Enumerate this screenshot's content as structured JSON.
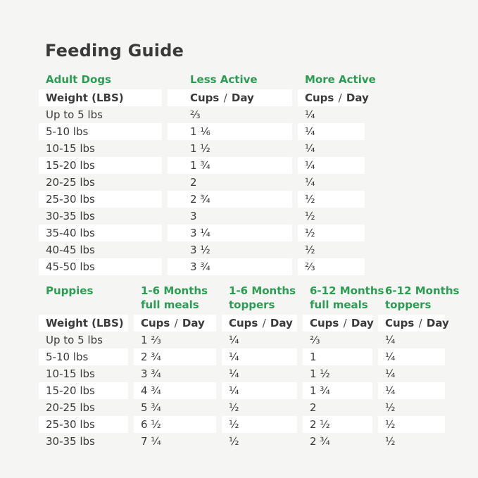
{
  "page": {
    "title": "Feeding Guide",
    "background_color": "#f5f5f3",
    "accent_green": "#2a9d52",
    "text_color": "#3a3a3a",
    "row_highlight_color": "#ffffff"
  },
  "adult_table": {
    "section_label": "Adult Dogs",
    "column_headers": [
      [
        "Adult Dogs"
      ],
      [
        "Less Active"
      ],
      [
        "More Active"
      ]
    ],
    "subheaders": [
      "Weight (LBS)",
      "Cups / Day",
      "Cups / Day"
    ],
    "rows": [
      [
        "Up to 5 lbs",
        "⅔",
        "¼"
      ],
      [
        "5-10 lbs",
        "1 ⅙",
        "¼"
      ],
      [
        "10-15 lbs",
        "1 ½",
        "¼"
      ],
      [
        "15-20 lbs",
        "1 ¾",
        "¼"
      ],
      [
        "20-25 lbs",
        "2",
        "¼"
      ],
      [
        "25-30 lbs",
        "2 ¾",
        "½"
      ],
      [
        "30-35 lbs",
        "3",
        "½"
      ],
      [
        "35-40 lbs",
        "3 ¼",
        "½"
      ],
      [
        "40-45 lbs",
        "3 ½",
        "½"
      ],
      [
        "45-50 lbs",
        "3 ¾",
        "⅔"
      ]
    ]
  },
  "puppies_table": {
    "section_label": "Puppies",
    "column_headers": [
      [
        "Puppies"
      ],
      [
        "1-6 Months",
        "full meals"
      ],
      [
        "1-6 Months",
        "toppers"
      ],
      [
        "6-12 Months",
        "full meals"
      ],
      [
        "6-12 Months",
        "toppers"
      ]
    ],
    "subheaders": [
      "Weight (LBS)",
      "Cups / Day",
      "Cups / Day",
      "Cups / Day",
      "Cups / Day"
    ],
    "rows": [
      [
        "Up to 5 lbs",
        "1 ⅔",
        "¼",
        "⅔",
        "¼"
      ],
      [
        "5-10 lbs",
        "2 ¾",
        "¼",
        "1",
        "¼"
      ],
      [
        "10-15 lbs",
        "3 ¾",
        "¼",
        "1 ½",
        "¼"
      ],
      [
        "15-20 lbs",
        "4 ¾",
        "¼",
        "1 ¾",
        "¼"
      ],
      [
        "20-25 lbs",
        "5 ¾",
        "½",
        "2",
        "½"
      ],
      [
        "25-30 lbs",
        "6 ½",
        "½",
        "2 ½",
        "½"
      ],
      [
        "30-35 lbs",
        "7 ¼",
        "½",
        "2 ¾",
        "½"
      ]
    ]
  }
}
